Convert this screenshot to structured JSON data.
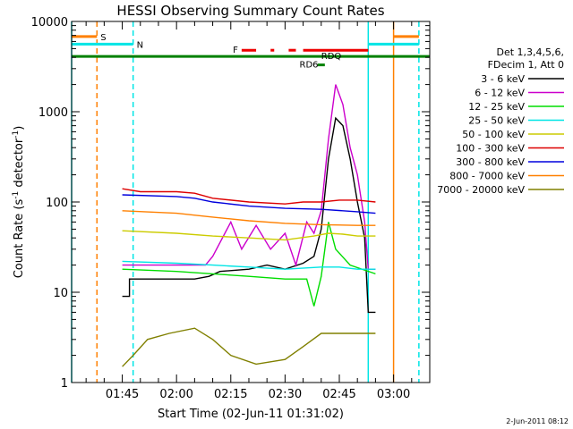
{
  "chart_data": {
    "type": "line",
    "title": "HESSI Observing Summary Count Rates",
    "xlabel": "Start Time (02-Jun-11 01:31:02)",
    "ylabel": "Count Rate (s⁻¹ detector⁻¹)",
    "ylabel_main": "Count Rate (s",
    "ylabel_sup1": "-1",
    "ylabel_mid": " detector",
    "ylabel_sup2": "-1",
    "ylabel_end": ")",
    "ylog": true,
    "ylim": [
      1,
      10000
    ],
    "xlim": [
      "01:31",
      "03:10"
    ],
    "xticks": [
      "01:45",
      "02:00",
      "02:15",
      "02:30",
      "02:45",
      "03:00"
    ],
    "yticks": [
      "1",
      "10",
      "100",
      "1000",
      "10000"
    ],
    "footer": "2-Jun-2011 08:12",
    "legend": {
      "header_line1": "Det 1,3,4,5,6,",
      "header_line2": "FDecim 1, Att 0",
      "placement": "right"
    },
    "series": [
      {
        "name": "3 - 6 keV",
        "color": "#000000",
        "points": [
          [
            "01:45",
            9
          ],
          [
            "01:47",
            9
          ],
          [
            "01:47",
            14
          ],
          [
            "02:05",
            14
          ],
          [
            "02:09",
            15
          ],
          [
            "02:12",
            17
          ],
          [
            "02:20",
            18
          ],
          [
            "02:25",
            20
          ],
          [
            "02:30",
            18
          ],
          [
            "02:35",
            21
          ],
          [
            "02:38",
            25
          ],
          [
            "02:40",
            50
          ],
          [
            "02:42",
            300
          ],
          [
            "02:44",
            850
          ],
          [
            "02:46",
            700
          ],
          [
            "02:48",
            300
          ],
          [
            "02:50",
            100
          ],
          [
            "02:52",
            40
          ],
          [
            "02:53",
            6
          ],
          [
            "02:55",
            6
          ]
        ]
      },
      {
        "name": "6 - 12 keV",
        "color": "#cc00cc",
        "points": [
          [
            "01:45",
            20
          ],
          [
            "02:08",
            20
          ],
          [
            "02:10",
            25
          ],
          [
            "02:15",
            60
          ],
          [
            "02:18",
            30
          ],
          [
            "02:22",
            55
          ],
          [
            "02:26",
            30
          ],
          [
            "02:30",
            45
          ],
          [
            "02:33",
            20
          ],
          [
            "02:36",
            60
          ],
          [
            "02:38",
            45
          ],
          [
            "02:40",
            80
          ],
          [
            "02:42",
            500
          ],
          [
            "02:44",
            2000
          ],
          [
            "02:46",
            1200
          ],
          [
            "02:48",
            400
          ],
          [
            "02:50",
            200
          ],
          [
            "02:52",
            60
          ],
          [
            "02:53",
            18
          ],
          [
            "02:55",
            18
          ]
        ]
      },
      {
        "name": "12 - 25 keV",
        "color": "#00dd00",
        "points": [
          [
            "01:45",
            18
          ],
          [
            "02:00",
            17
          ],
          [
            "02:10",
            16
          ],
          [
            "02:20",
            15
          ],
          [
            "02:30",
            14
          ],
          [
            "02:36",
            14
          ],
          [
            "02:38",
            7
          ],
          [
            "02:40",
            15
          ],
          [
            "02:42",
            60
          ],
          [
            "02:44",
            30
          ],
          [
            "02:48",
            20
          ],
          [
            "02:55",
            16
          ]
        ]
      },
      {
        "name": "25 - 50 keV",
        "color": "#00e5e5",
        "points": [
          [
            "01:45",
            22
          ],
          [
            "02:00",
            21
          ],
          [
            "02:10",
            20
          ],
          [
            "02:20",
            19
          ],
          [
            "02:30",
            18
          ],
          [
            "02:40",
            19
          ],
          [
            "02:45",
            19
          ],
          [
            "02:50",
            18
          ],
          [
            "02:55",
            18
          ]
        ]
      },
      {
        "name": "50 - 100 keV",
        "color": "#cccc00",
        "points": [
          [
            "01:45",
            48
          ],
          [
            "02:00",
            45
          ],
          [
            "02:10",
            42
          ],
          [
            "02:20",
            40
          ],
          [
            "02:30",
            38
          ],
          [
            "02:38",
            42
          ],
          [
            "02:42",
            45
          ],
          [
            "02:46",
            44
          ],
          [
            "02:50",
            42
          ],
          [
            "02:55",
            42
          ]
        ]
      },
      {
        "name": "100 - 300 keV",
        "color": "#dd0000",
        "points": [
          [
            "01:45",
            140
          ],
          [
            "01:50",
            130
          ],
          [
            "02:00",
            130
          ],
          [
            "02:05",
            125
          ],
          [
            "02:10",
            110
          ],
          [
            "02:20",
            100
          ],
          [
            "02:30",
            95
          ],
          [
            "02:35",
            100
          ],
          [
            "02:40",
            100
          ],
          [
            "02:45",
            105
          ],
          [
            "02:50",
            105
          ],
          [
            "02:55",
            100
          ]
        ]
      },
      {
        "name": "300 - 800 keV",
        "color": "#0000dd",
        "points": [
          [
            "01:45",
            120
          ],
          [
            "02:00",
            115
          ],
          [
            "02:05",
            110
          ],
          [
            "02:10",
            100
          ],
          [
            "02:20",
            90
          ],
          [
            "02:30",
            85
          ],
          [
            "02:40",
            83
          ],
          [
            "02:50",
            78
          ],
          [
            "02:55",
            75
          ]
        ]
      },
      {
        "name": "800 - 7000 keV",
        "color": "#ff8000",
        "points": [
          [
            "01:45",
            80
          ],
          [
            "02:00",
            75
          ],
          [
            "02:10",
            68
          ],
          [
            "02:20",
            62
          ],
          [
            "02:30",
            58
          ],
          [
            "02:40",
            56
          ],
          [
            "02:50",
            55
          ],
          [
            "02:55",
            55
          ]
        ]
      },
      {
        "name": "7000 - 20000 keV",
        "color": "#808000",
        "points": [
          [
            "01:45",
            1.5
          ],
          [
            "01:48",
            2
          ],
          [
            "01:52",
            3
          ],
          [
            "01:58",
            3.5
          ],
          [
            "02:05",
            4
          ],
          [
            "02:10",
            3
          ],
          [
            "02:15",
            2
          ],
          [
            "02:22",
            1.6
          ],
          [
            "02:30",
            1.8
          ],
          [
            "02:35",
            2.5
          ],
          [
            "02:40",
            3.5
          ],
          [
            "02:50",
            3.5
          ],
          [
            "02:55",
            3.5
          ]
        ]
      }
    ],
    "vertical_lines": [
      {
        "t": "01:31",
        "color": "#00e5e5",
        "style": "solid"
      },
      {
        "t": "01:38",
        "color": "#ff8000",
        "style": "dashed"
      },
      {
        "t": "01:48",
        "color": "#00e5e5",
        "style": "dashed"
      },
      {
        "t": "02:53",
        "color": "#00e5e5",
        "style": "solid"
      },
      {
        "t": "03:00",
        "color": "#ff8000",
        "style": "solid"
      },
      {
        "t": "03:07",
        "color": "#00e5e5",
        "style": "dashed"
      }
    ],
    "flag_bars": [
      {
        "label": "S",
        "color": "#ff8000",
        "level": 6800,
        "segments": [
          [
            "01:31",
            "01:38"
          ],
          [
            "03:00",
            "03:07"
          ]
        ]
      },
      {
        "label": "N",
        "color": "#00e5e5",
        "level": 5600,
        "segments": [
          [
            "01:31",
            "01:48"
          ],
          [
            "02:53",
            "03:07"
          ]
        ]
      },
      {
        "label": "F",
        "color": "#ee0000",
        "level": 4800,
        "segments": [
          [
            "02:18",
            "02:22"
          ],
          [
            "02:26",
            "02:27"
          ],
          [
            "02:31",
            "02:33"
          ],
          [
            "02:35",
            "02:53"
          ]
        ]
      },
      {
        "label": "RDQ",
        "color": "#008000",
        "level": 4100,
        "segments": [
          [
            "01:31",
            "03:10"
          ]
        ],
        "label_at": "02:40"
      },
      {
        "label": "RD6",
        "color": "#008000",
        "level": 3300,
        "segments": [
          [
            "02:39",
            "02:41"
          ]
        ],
        "label_at": "02:34"
      }
    ]
  }
}
